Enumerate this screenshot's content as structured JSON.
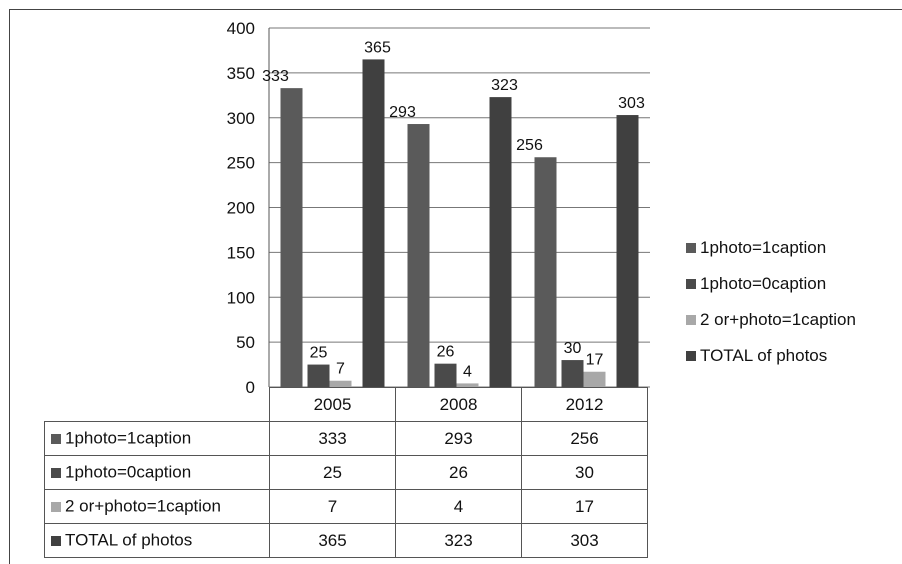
{
  "chart_data": {
    "type": "bar",
    "categories": [
      "2005",
      "2008",
      "2012"
    ],
    "series": [
      {
        "name": "1photo=1caption",
        "values": [
          333,
          293,
          256
        ],
        "color": "#5a5a5a"
      },
      {
        "name": "1photo=0caption",
        "values": [
          25,
          26,
          30
        ],
        "color": "#4a4a4a"
      },
      {
        "name": "2 or+photo=1caption",
        "values": [
          7,
          4,
          17
        ],
        "color": "#a8a8a8"
      },
      {
        "name": "TOTAL of photos",
        "values": [
          365,
          323,
          303
        ],
        "color": "#404040"
      }
    ],
    "ylim": [
      0,
      400
    ],
    "yticks": [
      "0",
      "50",
      "100",
      "150",
      "200",
      "250",
      "300",
      "350",
      "400"
    ],
    "grid": true,
    "legend": "right",
    "data_table": true
  }
}
